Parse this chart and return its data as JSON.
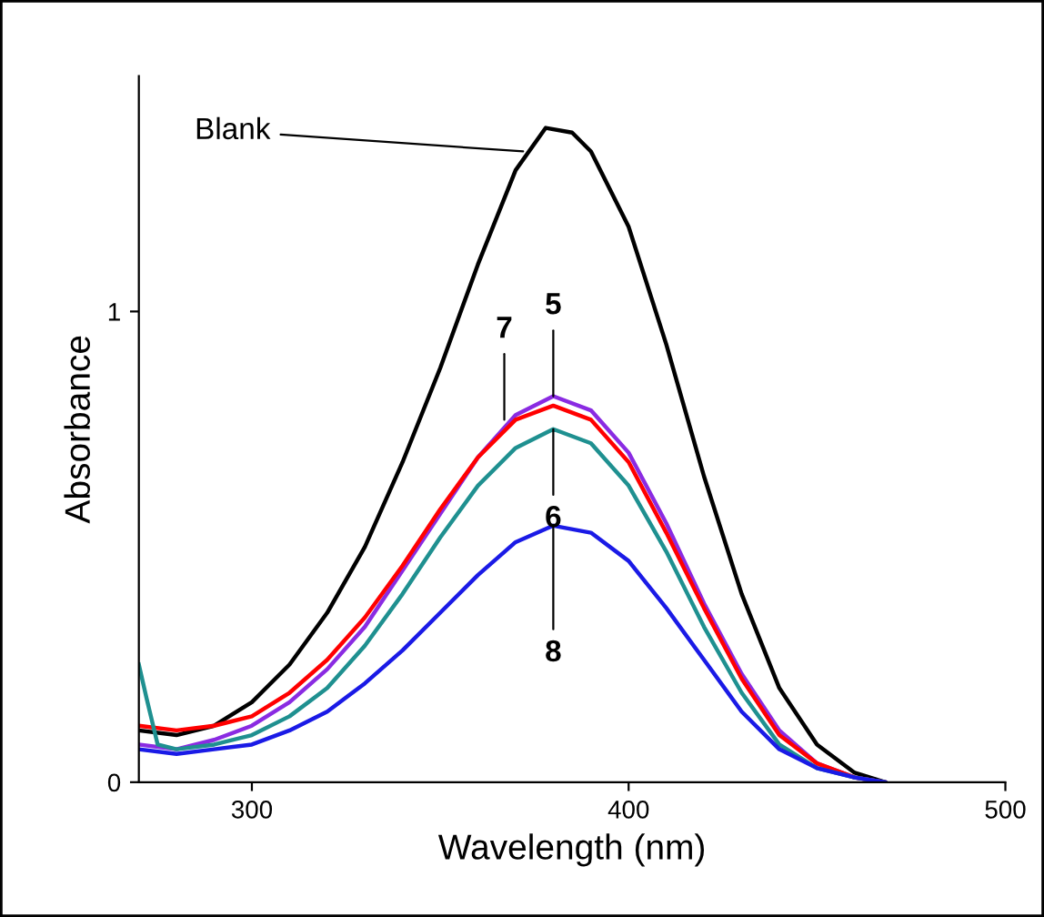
{
  "chart_data": {
    "type": "line",
    "xlabel": "Wavelength (nm)",
    "ylabel": "Absorbance",
    "xlim": [
      270,
      500
    ],
    "ylim": [
      0,
      1.5
    ],
    "xticks": [
      300,
      400,
      500
    ],
    "yticks": [
      0,
      1
    ],
    "grid": false,
    "legend": false,
    "marker": "none",
    "line_style": "solid",
    "series": [
      {
        "color": "#000000",
        "x": [
          270,
          280,
          290,
          300,
          310,
          320,
          330,
          340,
          350,
          360,
          370,
          378,
          385,
          390,
          400,
          410,
          420,
          430,
          440,
          450,
          460,
          468
        ],
        "values": [
          0.11,
          0.1,
          0.12,
          0.17,
          0.25,
          0.36,
          0.5,
          0.68,
          0.88,
          1.1,
          1.3,
          1.39,
          1.38,
          1.34,
          1.18,
          0.93,
          0.65,
          0.4,
          0.2,
          0.08,
          0.02,
          0.0
        ]
      },
      {
        "color": "#8a2be2",
        "x": [
          270,
          280,
          290,
          300,
          310,
          320,
          330,
          340,
          350,
          360,
          370,
          380,
          390,
          400,
          410,
          420,
          430,
          440,
          450,
          460,
          468
        ],
        "values": [
          0.08,
          0.07,
          0.09,
          0.12,
          0.17,
          0.24,
          0.33,
          0.45,
          0.57,
          0.69,
          0.78,
          0.82,
          0.79,
          0.7,
          0.55,
          0.38,
          0.23,
          0.11,
          0.04,
          0.01,
          0.0
        ]
      },
      {
        "color": "#ff0000",
        "x": [
          270,
          280,
          290,
          300,
          310,
          320,
          330,
          340,
          350,
          360,
          370,
          380,
          390,
          400,
          410,
          420,
          430,
          440,
          450,
          460,
          468
        ],
        "values": [
          0.12,
          0.11,
          0.12,
          0.14,
          0.19,
          0.26,
          0.35,
          0.46,
          0.58,
          0.69,
          0.77,
          0.8,
          0.77,
          0.68,
          0.53,
          0.37,
          0.22,
          0.1,
          0.04,
          0.01,
          0.0
        ]
      },
      {
        "color": "#1f9090",
        "x": [
          270,
          272,
          275,
          280,
          290,
          300,
          310,
          320,
          330,
          340,
          350,
          360,
          370,
          380,
          390,
          400,
          410,
          420,
          430,
          440,
          450,
          460,
          468
        ],
        "values": [
          0.25,
          0.18,
          0.08,
          0.07,
          0.08,
          0.1,
          0.14,
          0.2,
          0.29,
          0.4,
          0.52,
          0.63,
          0.71,
          0.75,
          0.72,
          0.63,
          0.49,
          0.33,
          0.19,
          0.08,
          0.03,
          0.01,
          0.0
        ]
      },
      {
        "color": "#1a1ae6",
        "x": [
          270,
          280,
          290,
          300,
          310,
          320,
          330,
          340,
          350,
          360,
          370,
          380,
          390,
          400,
          410,
          420,
          430,
          440,
          450,
          460,
          468
        ],
        "values": [
          0.07,
          0.06,
          0.07,
          0.08,
          0.11,
          0.15,
          0.21,
          0.28,
          0.36,
          0.44,
          0.51,
          0.545,
          0.53,
          0.47,
          0.37,
          0.26,
          0.15,
          0.07,
          0.03,
          0.01,
          0.0
        ]
      }
    ],
    "annotations": [
      {
        "text": "Blank",
        "x": 372,
        "y": 1.34
      },
      {
        "text": "5",
        "x": 380,
        "y": 0.82
      },
      {
        "text": "7",
        "x": 367,
        "y": 0.77
      },
      {
        "text": "6",
        "x": 380,
        "y": 0.75
      },
      {
        "text": "8",
        "x": 380,
        "y": 0.545
      }
    ]
  }
}
